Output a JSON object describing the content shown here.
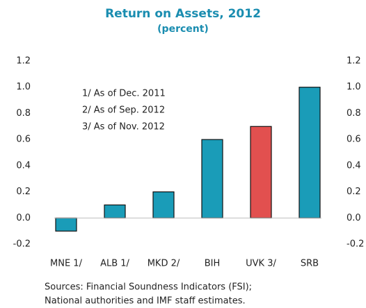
{
  "chart_data": {
    "type": "bar",
    "title": "Return on Assets, 2012",
    "subtitle": "(percent)",
    "categories": [
      "MNE 1/",
      "ALB 1/",
      "MKD 2/",
      "BIH",
      "UVK 3/",
      "SRB"
    ],
    "values": [
      -0.1,
      0.1,
      0.2,
      0.6,
      0.7,
      1.0
    ],
    "colors": [
      "#1a9cb8",
      "#1a9cb8",
      "#1a9cb8",
      "#1a9cb8",
      "#e2504f",
      "#1a9cb8"
    ],
    "ylim": [
      -0.2,
      1.2
    ],
    "yticks": [
      -0.2,
      {
        "value": 0,
        "label": "0.0"
      },
      0.2,
      0.4,
      0.6,
      0.8,
      {
        "value": 1,
        "label": "1.0"
      },
      1.2
    ],
    "y2lim": [
      -0.2,
      1.2
    ],
    "y2ticks": [
      -0.2,
      {
        "value": 0,
        "label": "0.0"
      },
      0.2,
      0.4,
      0.6,
      0.8,
      {
        "value": 1,
        "label": "1.0"
      },
      1.2
    ],
    "annotations": [
      "1/ As of Dec. 2011",
      "2/ As of Sep. 2012",
      "3/ As of Nov. 2012"
    ],
    "source": [
      "Sources:  Financial Soundness Indicators (FSI);",
      "National authorities and IMF staff estimates."
    ]
  }
}
